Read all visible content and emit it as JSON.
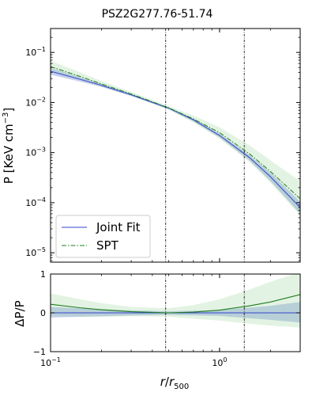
{
  "chart_data": [
    {
      "type": "line",
      "title": "PSZ2G277.76-51.74",
      "ylabel": "P [KeV cm",
      "ylabel_sup": "−3",
      "ylabel_close": "]",
      "x_scale": "log",
      "y_scale": "log",
      "xlim": [
        0.1,
        3.0
      ],
      "ylim": [
        6.5e-06,
        0.3
      ],
      "y_ticks": [
        {
          "value": 0.1,
          "base": "10",
          "exp": "−1"
        },
        {
          "value": 0.01,
          "base": "10",
          "exp": "−2"
        },
        {
          "value": 0.001,
          "base": "10",
          "exp": "−3"
        },
        {
          "value": 0.0001,
          "base": "10",
          "exp": "−4"
        },
        {
          "value": 1e-05,
          "base": "10",
          "exp": "−5"
        }
      ],
      "vlines_x": [
        0.48,
        1.4
      ],
      "legend": {
        "placement": "lower-left"
      },
      "series": [
        {
          "name": "Joint Fit",
          "color": "#3344cc",
          "style": "solid",
          "band_color": "#6f86d6",
          "x": [
            0.1,
            0.15,
            0.2,
            0.3,
            0.5,
            0.7,
            1.0,
            1.5,
            2.0,
            3.0
          ],
          "y": [
            0.042,
            0.029,
            0.022,
            0.0142,
            0.0077,
            0.0045,
            0.0022,
            0.0008,
            0.00033,
            8e-05
          ],
          "lower": [
            0.036,
            0.026,
            0.0205,
            0.0135,
            0.0074,
            0.0042,
            0.002,
            0.0007,
            0.00027,
            6e-05
          ],
          "upper": [
            0.049,
            0.032,
            0.0235,
            0.015,
            0.008,
            0.0048,
            0.0024,
            0.0009,
            0.0004,
            0.000105
          ]
        },
        {
          "name": "SPT",
          "color": "#1e7d1e",
          "style": "dashdot",
          "band_color": "#8fcf8f",
          "x": [
            0.1,
            0.15,
            0.2,
            0.3,
            0.5,
            0.7,
            1.0,
            1.5,
            2.0,
            3.0
          ],
          "y": [
            0.052,
            0.033,
            0.0235,
            0.0148,
            0.0078,
            0.0047,
            0.0025,
            0.00095,
            0.00042,
            0.00012
          ],
          "lower": [
            0.04,
            0.028,
            0.021,
            0.0135,
            0.0072,
            0.004,
            0.0019,
            0.00065,
            0.00025,
            5.5e-05
          ],
          "upper": [
            0.068,
            0.04,
            0.027,
            0.0163,
            0.0085,
            0.0055,
            0.0032,
            0.0014,
            0.0007,
            0.00027
          ]
        }
      ]
    },
    {
      "type": "line",
      "ylabel": "ΔP/P",
      "xlabel_r": "r",
      "xlabel_slash": "/",
      "xlabel_sub_r": "r",
      "xlabel_sub": "500",
      "x_scale": "log",
      "xlim": [
        0.1,
        3.0
      ],
      "ylim": [
        -1,
        1
      ],
      "y_ticks": [
        1,
        0,
        -1
      ],
      "y_tick_labels": [
        "1",
        "0",
        "−1"
      ],
      "x_ticks": [
        {
          "value": 0.1,
          "base": "10",
          "exp": "−1"
        },
        {
          "value": 1.0,
          "base": "10",
          "exp": "0"
        }
      ],
      "vlines_x": [
        0.48,
        1.4
      ],
      "zero_line_color": "#3344cc",
      "series": [
        {
          "name": "Joint Fit",
          "color": "#3344cc",
          "band_color": "#6f86d6",
          "x": [
            0.1,
            0.3,
            0.5,
            1.0,
            2.0,
            3.0
          ],
          "lower": [
            -0.12,
            -0.07,
            -0.05,
            -0.08,
            -0.18,
            -0.25
          ],
          "upper": [
            0.15,
            0.06,
            0.04,
            0.07,
            0.18,
            0.28
          ]
        },
        {
          "name": "SPT",
          "color": "#1e7d1e",
          "band_color": "#8fcf8f",
          "x": [
            0.1,
            0.15,
            0.2,
            0.3,
            0.5,
            0.7,
            1.0,
            1.5,
            2.0,
            3.0
          ],
          "y": [
            0.22,
            0.13,
            0.08,
            0.03,
            0.0,
            0.02,
            0.07,
            0.18,
            0.28,
            0.47
          ],
          "lower": [
            -0.08,
            -0.1,
            -0.1,
            -0.09,
            -0.1,
            -0.15,
            -0.2,
            -0.28,
            -0.33,
            -0.38
          ],
          "upper": [
            0.5,
            0.35,
            0.25,
            0.15,
            0.12,
            0.2,
            0.35,
            0.6,
            0.8,
            1.05
          ]
        }
      ]
    }
  ]
}
